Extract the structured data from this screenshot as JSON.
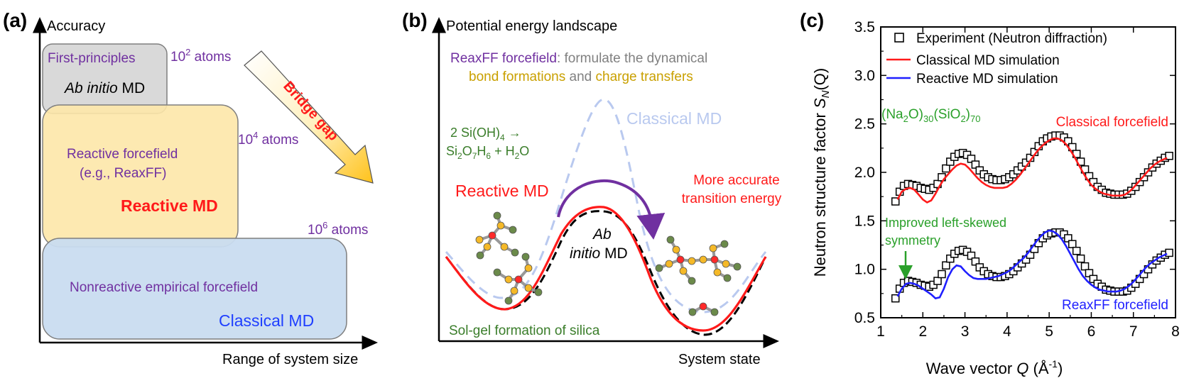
{
  "panel_a": {
    "label": "(a)",
    "y_axis": "Accuracy",
    "x_axis": "Range of system size",
    "boxes": {
      "first_principles": "First-principles",
      "ab_initio_italic": "Ab initio",
      "ab_initio_md": " MD",
      "reactive_ff_1": "Reactive forcefield",
      "reactive_ff_2": "(e.g., ReaxFF)",
      "reactive_md": "Reactive MD",
      "nonreactive_ff": "Nonreactive empirical forcefield",
      "classical_md": "Classical MD"
    },
    "atom_labels": {
      "a1_base": "10",
      "a1_exp": "2",
      "a1_unit": " atoms",
      "a2_base": "10",
      "a2_exp": "4",
      "a2_unit": " atoms",
      "a3_base": "10",
      "a3_exp": "6",
      "a3_unit": " atoms"
    },
    "arrow_label": "Bridge gap",
    "colors": {
      "purple": "#7030a0",
      "red": "#ff1a1a",
      "blue": "#1f3fff",
      "gray_box": "#d9d9d9",
      "yellow_box": "#fde7a9",
      "blue_box": "#c9dcf0"
    }
  },
  "panel_b": {
    "label": "(b)",
    "y_axis": "Potential energy landscape",
    "x_axis": "System state",
    "reaxff_title": "ReaxFF forcefield",
    "reaxff_rest": ": formulate the dynamical",
    "bond_formations": "bond formations",
    "and_word": " and ",
    "charge_transfers": "charge transfers",
    "reaction_1": "2 Si(OH)",
    "reaction_1_sub": "4",
    "reaction_1_arrow": " →",
    "reaction_2a": "Si",
    "reaction_2b": "2",
    "reaction_2c": "O",
    "reaction_2d": "7",
    "reaction_2e": "H",
    "reaction_2f": "6",
    "reaction_2g": " + H",
    "reaction_2h": "2",
    "reaction_2i": "O",
    "classical_md": "Classical MD",
    "reactive_md": "Reactive MD",
    "more_accurate_1": "More accurate",
    "more_accurate_2": "transition energy",
    "ab_initio_1": "Ab",
    "ab_initio_2": "initio",
    "ab_initio_3": " MD",
    "sol_gel": "Sol-gel formation of silica"
  },
  "panel_c": {
    "label": "(c)",
    "legend": {
      "experiment": "Experiment (Neutron diffraction)",
      "classical": "Classical MD simulation",
      "reactive": "Reactive MD simulation"
    },
    "composition": {
      "p1": "(Na",
      "s1": "2",
      "p2": "O)",
      "s2": "30",
      "p3": "(SiO",
      "s3": "2",
      "p4": ")",
      "s4": "70"
    },
    "classical_ff": "Classical forcefield",
    "reaxff_ff": "ReaxFF forcefield",
    "improved_1": "Improved left-skewed",
    "improved_2": "symmetry",
    "ylabel_main": "Neutron structure factor ",
    "ylabel_s": "S",
    "ylabel_sub": "N",
    "ylabel_q": "(Q)",
    "xlabel_main": "Wave vector ",
    "xlabel_q": "Q",
    "xlabel_unit": " (Å",
    "xlabel_exp": "-1",
    "xlabel_close": ")",
    "colors": {
      "classical": "#ff1a1a",
      "reactive": "#1f1fff",
      "green": "#2aa02a"
    }
  },
  "chart_data": {
    "type": "line",
    "xlabel": "Wave vector Q (Å-1)",
    "ylabel": "Neutron structure factor SN(Q)",
    "xlim": [
      1,
      8
    ],
    "ylim": [
      0.5,
      3.5
    ],
    "x_ticks": [
      "1",
      "2",
      "3",
      "4",
      "5",
      "6",
      "7",
      "8"
    ],
    "y_ticks": [
      "0.5",
      "1.0",
      "1.5",
      "2.0",
      "2.5",
      "3.0",
      "3.5"
    ],
    "legend_position": "top-right",
    "series": [
      {
        "name": "Experiment (Neutron diffraction)",
        "color": "#000000",
        "group": "upper",
        "x": [
          1.35,
          1.45,
          1.55,
          1.65,
          1.75,
          1.85,
          1.95,
          2.05,
          2.15,
          2.25,
          2.35,
          2.45,
          2.55,
          2.65,
          2.75,
          2.85,
          2.95,
          3.05,
          3.15,
          3.25,
          3.35,
          3.45,
          3.55,
          3.65,
          3.75,
          3.85,
          3.95,
          4.05,
          4.15,
          4.25,
          4.35,
          4.45,
          4.55,
          4.65,
          4.75,
          4.85,
          4.95,
          5.05,
          5.15,
          5.25,
          5.35,
          5.45,
          5.55,
          5.65,
          5.75,
          5.85,
          5.95,
          6.05,
          6.15,
          6.25,
          6.35,
          6.45,
          6.55,
          6.65,
          6.75,
          6.85,
          6.95,
          7.05,
          7.15,
          7.25,
          7.35,
          7.45,
          7.55,
          7.65,
          7.75,
          7.85
        ],
        "y": [
          1.7,
          1.8,
          1.86,
          1.88,
          1.87,
          1.86,
          1.84,
          1.83,
          1.82,
          1.84,
          1.88,
          1.95,
          2.04,
          2.11,
          2.16,
          2.19,
          2.2,
          2.18,
          2.14,
          2.08,
          2.02,
          1.98,
          1.95,
          1.93,
          1.92,
          1.92,
          1.93,
          1.95,
          1.98,
          2.02,
          2.06,
          2.1,
          2.15,
          2.21,
          2.27,
          2.32,
          2.35,
          2.37,
          2.38,
          2.38,
          2.36,
          2.32,
          2.26,
          2.19,
          2.11,
          2.03,
          1.96,
          1.9,
          1.85,
          1.82,
          1.79,
          1.78,
          1.77,
          1.77,
          1.77,
          1.78,
          1.81,
          1.85,
          1.9,
          1.95,
          2.0,
          2.05,
          2.09,
          2.12,
          2.15,
          2.17
        ]
      },
      {
        "name": "Classical MD simulation",
        "color": "#ff1a1a",
        "group": "upper",
        "x": [
          1.4,
          1.5,
          1.6,
          1.7,
          1.8,
          1.9,
          2.0,
          2.1,
          2.2,
          2.3,
          2.4,
          2.5,
          2.6,
          2.7,
          2.8,
          2.9,
          3.0,
          3.1,
          3.2,
          3.3,
          3.4,
          3.5,
          3.6,
          3.7,
          3.8,
          3.9,
          4.0,
          4.1,
          4.2,
          4.3,
          4.4,
          4.5,
          4.6,
          4.7,
          4.8,
          4.9,
          5.0,
          5.1,
          5.2,
          5.3,
          5.4,
          5.5,
          5.6,
          5.7,
          5.8,
          5.9,
          6.0,
          6.1,
          6.2,
          6.3,
          6.4,
          6.5,
          6.6,
          6.7,
          6.8,
          6.9,
          7.0,
          7.1,
          7.2,
          7.3,
          7.4,
          7.5,
          7.6,
          7.7,
          7.8
        ],
        "y": [
          1.72,
          1.8,
          1.83,
          1.84,
          1.82,
          1.77,
          1.72,
          1.69,
          1.71,
          1.78,
          1.86,
          1.93,
          1.98,
          2.03,
          2.07,
          2.09,
          2.08,
          2.04,
          1.99,
          1.94,
          1.9,
          1.87,
          1.85,
          1.84,
          1.84,
          1.84,
          1.85,
          1.88,
          1.92,
          1.97,
          2.03,
          2.09,
          2.15,
          2.21,
          2.26,
          2.3,
          2.33,
          2.35,
          2.35,
          2.33,
          2.29,
          2.23,
          2.16,
          2.08,
          2.0,
          1.93,
          1.87,
          1.83,
          1.8,
          1.78,
          1.77,
          1.76,
          1.76,
          1.76,
          1.77,
          1.8,
          1.84,
          1.89,
          1.94,
          1.99,
          2.04,
          2.08,
          2.11,
          2.13,
          2.15
        ]
      },
      {
        "name": "Experiment (Neutron diffraction)",
        "color": "#000000",
        "group": "lower",
        "x": [
          1.35,
          1.45,
          1.55,
          1.65,
          1.75,
          1.85,
          1.95,
          2.05,
          2.15,
          2.25,
          2.35,
          2.45,
          2.55,
          2.65,
          2.75,
          2.85,
          2.95,
          3.05,
          3.15,
          3.25,
          3.35,
          3.45,
          3.55,
          3.65,
          3.75,
          3.85,
          3.95,
          4.05,
          4.15,
          4.25,
          4.35,
          4.45,
          4.55,
          4.65,
          4.75,
          4.85,
          4.95,
          5.05,
          5.15,
          5.25,
          5.35,
          5.45,
          5.55,
          5.65,
          5.75,
          5.85,
          5.95,
          6.05,
          6.15,
          6.25,
          6.35,
          6.45,
          6.55,
          6.65,
          6.75,
          6.85,
          6.95,
          7.05,
          7.15,
          7.25,
          7.35,
          7.45,
          7.55,
          7.65,
          7.75,
          7.85
        ],
        "y": [
          0.7,
          0.8,
          0.86,
          0.88,
          0.87,
          0.86,
          0.84,
          0.83,
          0.82,
          0.84,
          0.88,
          0.95,
          1.04,
          1.11,
          1.16,
          1.19,
          1.2,
          1.18,
          1.14,
          1.08,
          1.02,
          0.98,
          0.95,
          0.93,
          0.92,
          0.92,
          0.93,
          0.95,
          0.98,
          1.02,
          1.06,
          1.1,
          1.15,
          1.21,
          1.27,
          1.32,
          1.35,
          1.37,
          1.38,
          1.38,
          1.36,
          1.32,
          1.26,
          1.19,
          1.11,
          1.03,
          0.96,
          0.9,
          0.85,
          0.82,
          0.79,
          0.78,
          0.77,
          0.77,
          0.77,
          0.78,
          0.81,
          0.85,
          0.9,
          0.95,
          1.0,
          1.05,
          1.09,
          1.12,
          1.15,
          1.17
        ]
      },
      {
        "name": "Reactive MD simulation",
        "color": "#1f1fff",
        "group": "lower",
        "x": [
          1.4,
          1.5,
          1.6,
          1.7,
          1.8,
          1.9,
          2.0,
          2.1,
          2.2,
          2.3,
          2.4,
          2.5,
          2.6,
          2.7,
          2.8,
          2.9,
          3.0,
          3.1,
          3.2,
          3.3,
          3.4,
          3.5,
          3.6,
          3.7,
          3.8,
          3.9,
          4.0,
          4.1,
          4.2,
          4.3,
          4.4,
          4.5,
          4.6,
          4.7,
          4.8,
          4.9,
          5.0,
          5.1,
          5.2,
          5.3,
          5.4,
          5.5,
          5.6,
          5.7,
          5.8,
          5.9,
          6.0,
          6.1,
          6.2,
          6.3,
          6.4,
          6.5,
          6.6,
          6.7,
          6.8,
          6.9,
          7.0,
          7.1,
          7.2,
          7.3,
          7.4,
          7.5,
          7.6,
          7.7,
          7.8
        ],
        "y": [
          0.72,
          0.8,
          0.85,
          0.86,
          0.85,
          0.83,
          0.8,
          0.77,
          0.74,
          0.7,
          0.71,
          0.8,
          0.92,
          1.0,
          1.04,
          1.03,
          0.98,
          0.94,
          0.91,
          0.9,
          0.9,
          0.9,
          0.91,
          0.92,
          0.93,
          0.95,
          0.97,
          1.0,
          1.04,
          1.08,
          1.12,
          1.17,
          1.23,
          1.29,
          1.34,
          1.38,
          1.4,
          1.39,
          1.36,
          1.31,
          1.24,
          1.16,
          1.08,
          1.0,
          0.93,
          0.88,
          0.84,
          0.81,
          0.79,
          0.78,
          0.77,
          0.77,
          0.77,
          0.78,
          0.8,
          0.83,
          0.87,
          0.92,
          0.97,
          1.02,
          1.06,
          1.09,
          1.12,
          1.14,
          1.16
        ]
      }
    ]
  }
}
